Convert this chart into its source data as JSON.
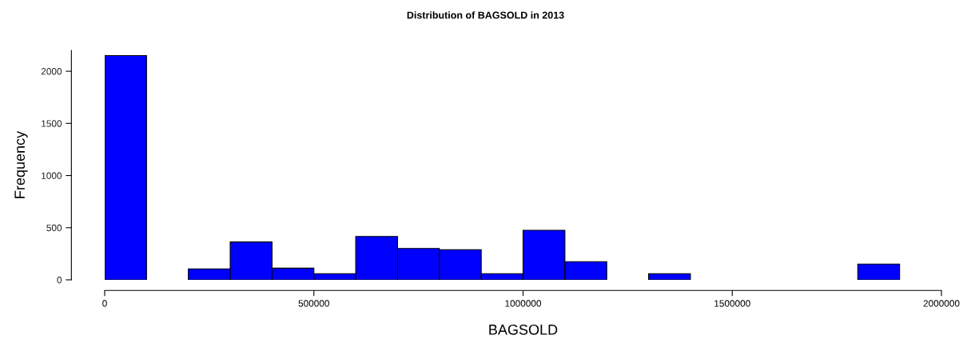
{
  "chart_data": {
    "type": "histogram",
    "title": "Distribution of BAGSOLD in 2013",
    "xlabel": "BAGSOLD",
    "ylabel": "Frequency",
    "bins": [
      0,
      100000,
      200000,
      300000,
      400000,
      500000,
      600000,
      700000,
      800000,
      900000,
      1000000,
      1100000,
      1200000,
      1300000,
      1400000,
      1500000,
      1600000,
      1700000,
      1800000,
      1900000
    ],
    "values": [
      2150,
      0,
      105,
      363,
      112,
      59,
      416,
      301,
      289,
      59,
      475,
      174,
      0,
      59,
      0,
      0,
      0,
      0,
      151
    ],
    "color": "#0000ff",
    "xlim": [
      0,
      2000000
    ],
    "ylim": [
      0,
      2200
    ],
    "xticks": [
      0,
      500000,
      1000000,
      1500000,
      2000000
    ],
    "yticks": [
      0,
      500,
      1000,
      1500,
      2000
    ],
    "grid": false,
    "legend": false
  }
}
